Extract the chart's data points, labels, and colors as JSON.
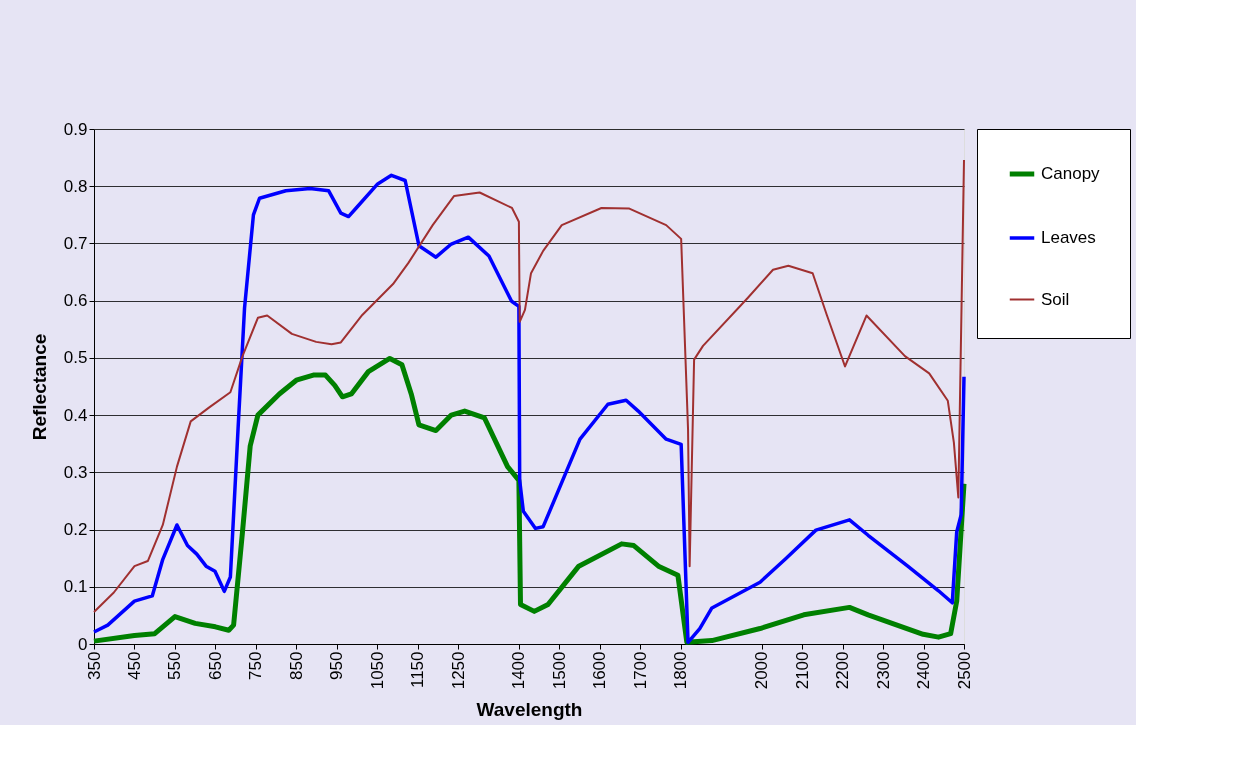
{
  "chart_data": {
    "type": "line",
    "xlabel": "Wavelength",
    "ylabel": "Reflectance",
    "xlim": [
      350,
      2500
    ],
    "xticks": [
      350,
      450,
      550,
      650,
      750,
      850,
      950,
      1050,
      1150,
      1250,
      1400,
      1500,
      1600,
      1700,
      1800,
      2000,
      2100,
      2200,
      2300,
      2400,
      2500
    ],
    "ylim": [
      0,
      0.9
    ],
    "yticks": [
      0,
      0.1,
      0.2,
      0.3,
      0.4,
      0.5,
      0.6,
      0.7,
      0.8,
      0.9
    ],
    "grid": "y",
    "legend": "right",
    "line_style": "solid",
    "marker": "none",
    "series": [
      {
        "name": "Canopy",
        "color": "#008000",
        "x": [
          350,
          450,
          500,
          550,
          600,
          650,
          683,
          695,
          717,
          736,
          755,
          808,
          850,
          892,
          922,
          945,
          964,
          986,
          1028,
          1081,
          1111,
          1134,
          1153,
          1195,
          1233,
          1266,
          1315,
          1372,
          1400,
          1404,
          1438,
          1472,
          1548,
          1654,
          1684,
          1745,
          1793,
          1815,
          1877,
          1996,
          2104,
          2217,
          2263,
          2399,
          2437,
          2467,
          2482,
          2500
        ],
        "values": [
          0.005,
          0.015,
          0.018,
          0.048,
          0.036,
          0.03,
          0.024,
          0.033,
          0.196,
          0.346,
          0.4,
          0.437,
          0.461,
          0.47,
          0.47,
          0.452,
          0.432,
          0.437,
          0.476,
          0.499,
          0.488,
          0.437,
          0.383,
          0.373,
          0.4,
          0.407,
          0.395,
          0.31,
          0.286,
          0.069,
          0.057,
          0.069,
          0.136,
          0.175,
          0.172,
          0.136,
          0.12,
          0.003,
          0.006,
          0.027,
          0.051,
          0.064,
          0.051,
          0.017,
          0.012,
          0.018,
          0.075,
          0.28
        ]
      },
      {
        "name": "Leaves",
        "color": "#0000ff",
        "x": [
          350,
          384,
          450,
          494,
          520,
          555,
          581,
          604,
          627,
          649,
          672,
          687,
          706,
          722,
          744,
          759,
          824,
          884,
          930,
          960,
          979,
          998,
          1051,
          1085,
          1119,
          1153,
          1195,
          1233,
          1275,
          1326,
          1382,
          1400,
          1402,
          1411,
          1441,
          1460,
          1551,
          1620,
          1665,
          1695,
          1764,
          1801,
          1818,
          1847,
          1877,
          1996,
          2058,
          2134,
          2217,
          2263,
          2361,
          2437,
          2471,
          2482,
          2493,
          2500
        ],
        "values": [
          0.021,
          0.033,
          0.075,
          0.084,
          0.148,
          0.208,
          0.172,
          0.157,
          0.136,
          0.127,
          0.092,
          0.117,
          0.376,
          0.587,
          0.75,
          0.779,
          0.792,
          0.796,
          0.792,
          0.753,
          0.747,
          0.762,
          0.804,
          0.819,
          0.81,
          0.696,
          0.676,
          0.699,
          0.711,
          0.678,
          0.599,
          0.59,
          0.286,
          0.232,
          0.202,
          0.205,
          0.358,
          0.419,
          0.426,
          0.407,
          0.358,
          0.349,
          0.003,
          0.027,
          0.063,
          0.108,
          0.148,
          0.199,
          0.217,
          0.19,
          0.136,
          0.093,
          0.072,
          0.196,
          0.226,
          0.467
        ]
      },
      {
        "name": "Soil",
        "color": "#a03030",
        "x": [
          350,
          399,
          450,
          483,
          520,
          555,
          589,
          634,
          687,
          717,
          755,
          778,
          839,
          899,
          937,
          960,
          1013,
          1089,
          1127,
          1187,
          1240,
          1303,
          1383,
          1400,
          1402,
          1415,
          1430,
          1460,
          1506,
          1604,
          1673,
          1764,
          1801,
          1818,
          1822,
          1833,
          1855,
          1966,
          2028,
          2066,
          2126,
          2161,
          2206,
          2259,
          2354,
          2414,
          2460,
          2475,
          2486,
          2500
        ],
        "values": [
          0.056,
          0.09,
          0.136,
          0.145,
          0.208,
          0.31,
          0.389,
          0.413,
          0.44,
          0.503,
          0.57,
          0.574,
          0.542,
          0.528,
          0.524,
          0.527,
          0.575,
          0.629,
          0.666,
          0.732,
          0.783,
          0.789,
          0.762,
          0.738,
          0.563,
          0.584,
          0.648,
          0.687,
          0.732,
          0.762,
          0.761,
          0.732,
          0.708,
          0.376,
          0.136,
          0.497,
          0.521,
          0.605,
          0.654,
          0.661,
          0.648,
          0.575,
          0.485,
          0.574,
          0.503,
          0.473,
          0.425,
          0.352,
          0.256,
          0.846
        ]
      }
    ]
  }
}
